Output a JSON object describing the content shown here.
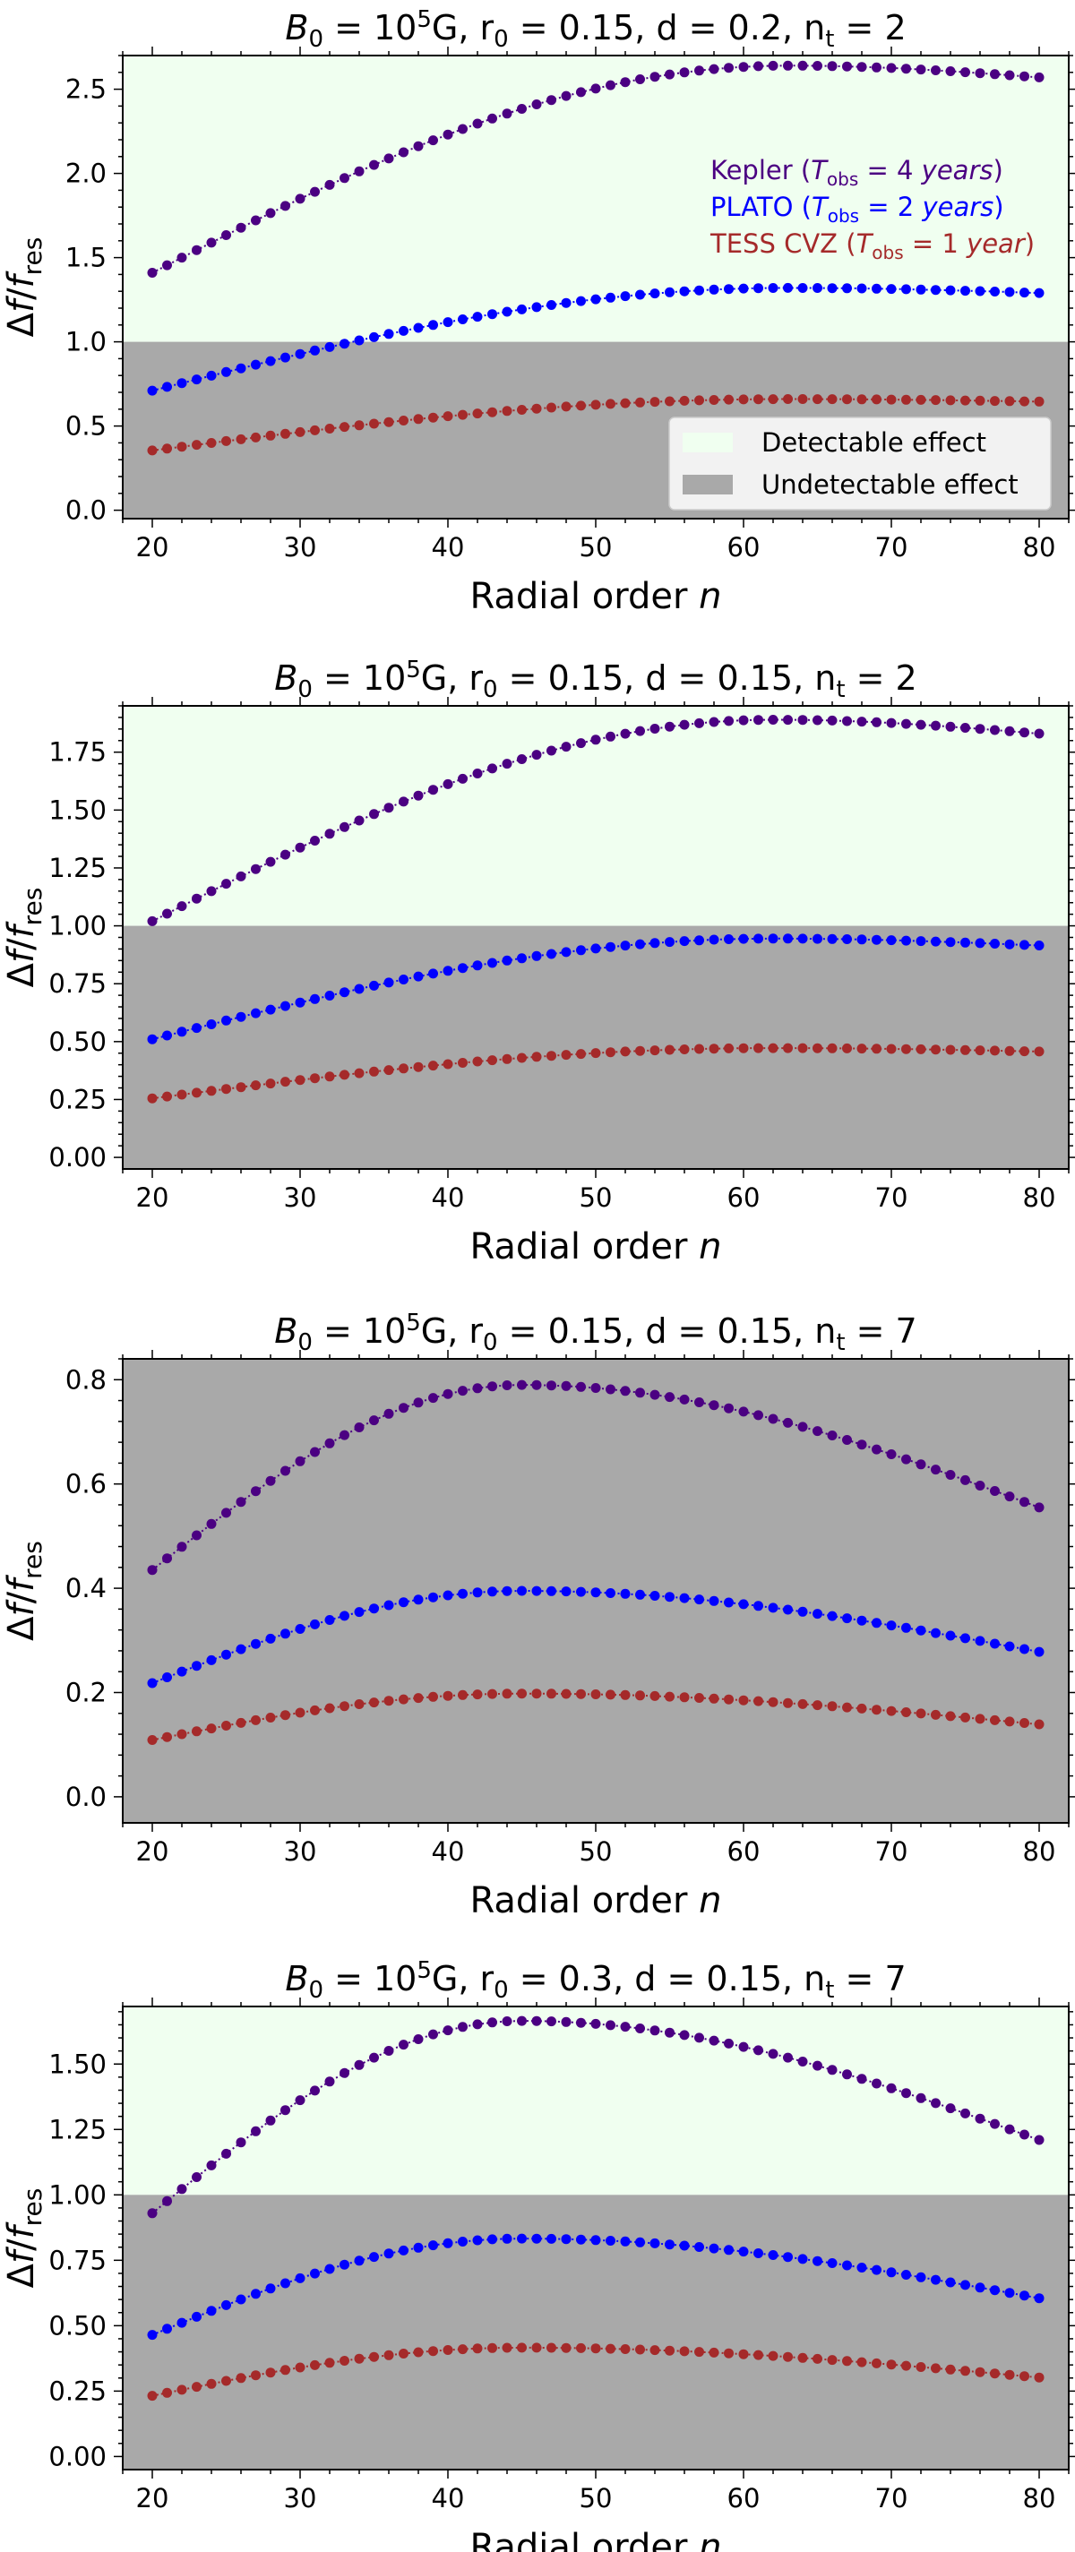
{
  "colors": {
    "kepler": "#4b0082",
    "plato": "#0000ff",
    "tess": "#a52a2a",
    "detectable": "#f0fff0",
    "undetectable": "#a9a9a9"
  },
  "labels": {
    "xlabel": "Radial order",
    "xlabel_var": "n",
    "ylabel_delta": "Δ",
    "ylabel_f": "f",
    "ylabel_slash": "/",
    "ylabel_fres": "f",
    "ylabel_res": "res",
    "title_B": "B",
    "title_B_sub": "0",
    "title_B_val": " = 10",
    "title_B_exp": "5",
    "title_B_unit": "G,",
    "title_r": "r",
    "title_r_sub": "0",
    "title_d": "d",
    "title_n": "n",
    "title_n_sub": "t",
    "eq": " = "
  },
  "legend": {
    "kepler": {
      "name": "Kepler",
      "open": " (",
      "tsym": "T",
      "tsub": "obs",
      "eq": " = 4 ",
      "unit": "years",
      "close": ")"
    },
    "plato": {
      "name": "PLATO",
      "open": " (",
      "tsym": "T",
      "tsub": "obs",
      "eq": " = 2 ",
      "unit": "years",
      "close": ")"
    },
    "tess": {
      "name": "TESS CVZ",
      "open": " (",
      "tsym": "T",
      "tsub": "obs",
      "eq": " = 1 ",
      "unit": "year",
      "close": ")"
    },
    "detectable": "Detectable effect",
    "undetectable": "Undetectable effect"
  },
  "chart_data": [
    {
      "type": "scatter",
      "title": {
        "B0": "10^5 G",
        "r0": "0.15",
        "d": "0.2",
        "nt": "2"
      },
      "title_values": {
        "r0": "0.15,",
        "d": "0.2,",
        "nt": "2"
      },
      "xlabel": "Radial order n",
      "ylabel": "Δf/f_res",
      "xlim": [
        18,
        82
      ],
      "ylim": [
        -0.05,
        2.7
      ],
      "x_ticks": [
        20,
        30,
        40,
        50,
        60,
        70,
        80
      ],
      "x_tick_labels": [
        "20",
        "30",
        "40",
        "50",
        "60",
        "70",
        "80"
      ],
      "y_ticks": [
        0,
        0.5,
        1,
        1.5,
        2,
        2.5
      ],
      "y_tick_labels": [
        "0.0",
        "0.5",
        "1.0",
        "1.5",
        "2.0",
        "2.5"
      ],
      "threshold": 1.0,
      "x_range": [
        20,
        80
      ],
      "series": [
        {
          "name": "Kepler",
          "color": "#4b0082",
          "start": 1.41,
          "peak": 2.64,
          "peak_n": 63,
          "end": 2.57
        },
        {
          "name": "PLATO",
          "color": "#0000ff",
          "start": 0.71,
          "peak": 1.32,
          "peak_n": 63,
          "end": 1.29
        },
        {
          "name": "TESS CVZ",
          "color": "#a52a2a",
          "start": 0.355,
          "peak": 0.66,
          "peak_n": 63,
          "end": 0.645
        }
      ],
      "show_series_legend": true,
      "show_region_legend": true
    },
    {
      "type": "scatter",
      "title": {
        "B0": "10^5 G",
        "r0": "0.15",
        "d": "0.15",
        "nt": "2"
      },
      "title_values": {
        "r0": "0.15,",
        "d": "0.15,",
        "nt": "2"
      },
      "xlabel": "Radial order n",
      "ylabel": "Δf/f_res",
      "xlim": [
        18,
        82
      ],
      "ylim": [
        -0.05,
        1.95
      ],
      "x_ticks": [
        20,
        30,
        40,
        50,
        60,
        70,
        80
      ],
      "x_tick_labels": [
        "20",
        "30",
        "40",
        "50",
        "60",
        "70",
        "80"
      ],
      "y_ticks": [
        0,
        0.25,
        0.5,
        0.75,
        1,
        1.25,
        1.5,
        1.75
      ],
      "y_tick_labels": [
        "0.00",
        "0.25",
        "0.50",
        "0.75",
        "1.00",
        "1.25",
        "1.50",
        "1.75"
      ],
      "threshold": 1.0,
      "x_range": [
        20,
        80
      ],
      "series": [
        {
          "name": "Kepler",
          "color": "#4b0082",
          "start": 1.02,
          "peak": 1.89,
          "peak_n": 62,
          "end": 1.83
        },
        {
          "name": "PLATO",
          "color": "#0000ff",
          "start": 0.51,
          "peak": 0.945,
          "peak_n": 62,
          "end": 0.915
        },
        {
          "name": "TESS CVZ",
          "color": "#a52a2a",
          "start": 0.255,
          "peak": 0.472,
          "peak_n": 62,
          "end": 0.457
        }
      ],
      "show_series_legend": false,
      "show_region_legend": false
    },
    {
      "type": "scatter",
      "title": {
        "B0": "10^5 G",
        "r0": "0.15",
        "d": "0.15",
        "nt": "7"
      },
      "title_values": {
        "r0": "0.15,",
        "d": "0.15,",
        "nt": "7"
      },
      "xlabel": "Radial order n",
      "ylabel": "Δf/f_res",
      "xlim": [
        18,
        82
      ],
      "ylim": [
        -0.05,
        0.84
      ],
      "x_ticks": [
        20,
        30,
        40,
        50,
        60,
        70,
        80
      ],
      "x_tick_labels": [
        "20",
        "30",
        "40",
        "50",
        "60",
        "70",
        "80"
      ],
      "y_ticks": [
        0,
        0.2,
        0.4,
        0.6,
        0.8
      ],
      "y_tick_labels": [
        "0.0",
        "0.2",
        "0.4",
        "0.6",
        "0.8"
      ],
      "threshold": 1.0,
      "x_range": [
        20,
        80
      ],
      "series": [
        {
          "name": "Kepler",
          "color": "#4b0082",
          "start": 0.435,
          "peak": 0.79,
          "peak_n": 45,
          "end": 0.555
        },
        {
          "name": "PLATO",
          "color": "#0000ff",
          "start": 0.218,
          "peak": 0.395,
          "peak_n": 45,
          "end": 0.278
        },
        {
          "name": "TESS CVZ",
          "color": "#a52a2a",
          "start": 0.109,
          "peak": 0.198,
          "peak_n": 45,
          "end": 0.139
        }
      ],
      "show_series_legend": false,
      "show_region_legend": false
    },
    {
      "type": "scatter",
      "title": {
        "B0": "10^5 G",
        "r0": "0.3",
        "d": "0.15",
        "nt": "7"
      },
      "title_values": {
        "r0": "0.3,",
        "d": "0.15,",
        "nt": "7"
      },
      "xlabel": "Radial order n",
      "ylabel": "Δf/f_res",
      "xlim": [
        18,
        82
      ],
      "ylim": [
        -0.05,
        1.72
      ],
      "x_ticks": [
        20,
        30,
        40,
        50,
        60,
        70,
        80
      ],
      "x_tick_labels": [
        "20",
        "30",
        "40",
        "50",
        "60",
        "70",
        "80"
      ],
      "y_ticks": [
        0,
        0.25,
        0.5,
        0.75,
        1,
        1.25,
        1.5
      ],
      "y_tick_labels": [
        "0.00",
        "0.25",
        "0.50",
        "0.75",
        "1.00",
        "1.25",
        "1.50"
      ],
      "threshold": 1.0,
      "x_range": [
        20,
        80
      ],
      "series": [
        {
          "name": "Kepler",
          "color": "#4b0082",
          "start": 0.93,
          "peak": 1.665,
          "peak_n": 45,
          "end": 1.21
        },
        {
          "name": "PLATO",
          "color": "#0000ff",
          "start": 0.465,
          "peak": 0.833,
          "peak_n": 45,
          "end": 0.605
        },
        {
          "name": "TESS CVZ",
          "color": "#a52a2a",
          "start": 0.232,
          "peak": 0.416,
          "peak_n": 45,
          "end": 0.302
        }
      ],
      "show_series_legend": false,
      "show_region_legend": false
    }
  ]
}
